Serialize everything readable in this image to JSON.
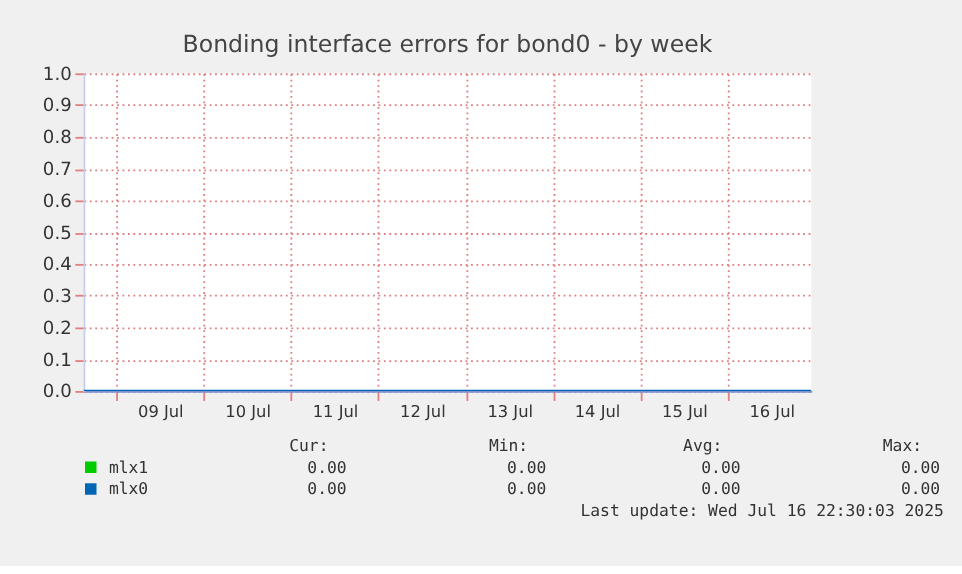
{
  "chart_data": {
    "type": "line",
    "title": "Bonding interface errors for bond0 - by week",
    "x": [
      "2025-07-08T15:00",
      "2025-07-16T23:00"
    ],
    "series": [
      {
        "name": "mlx1",
        "color": "#00cc00",
        "values": [
          null,
          null
        ]
      },
      {
        "name": "mlx0",
        "color": "#0066b3",
        "values": [
          0,
          0
        ]
      }
    ],
    "xlim": [
      "2025-07-08T15:00",
      "2025-07-16T23:00"
    ],
    "xticks": [
      {
        "value": "2025-07-09T00:00",
        "label": null
      },
      {
        "value": "2025-07-09T12:00",
        "label": "09 Jul"
      },
      {
        "value": "2025-07-10T00:00",
        "label": null
      },
      {
        "value": "2025-07-10T12:00",
        "label": "10 Jul"
      },
      {
        "value": "2025-07-11T00:00",
        "label": null
      },
      {
        "value": "2025-07-11T12:00",
        "label": "11 Jul"
      },
      {
        "value": "2025-07-12T00:00",
        "label": null
      },
      {
        "value": "2025-07-12T12:00",
        "label": "12 Jul"
      },
      {
        "value": "2025-07-13T00:00",
        "label": null
      },
      {
        "value": "2025-07-13T12:00",
        "label": "13 Jul"
      },
      {
        "value": "2025-07-14T00:00",
        "label": null
      },
      {
        "value": "2025-07-14T12:00",
        "label": "14 Jul"
      },
      {
        "value": "2025-07-15T00:00",
        "label": null
      },
      {
        "value": "2025-07-15T12:00",
        "label": "15 Jul"
      },
      {
        "value": "2025-07-16T00:00",
        "label": null
      },
      {
        "value": "2025-07-16T12:00",
        "label": "16 Jul"
      }
    ],
    "ylim": [
      0,
      1
    ],
    "yticks": [
      {
        "value": 0,
        "label": "0.0"
      },
      {
        "value": 0.1,
        "label": "0.1"
      },
      {
        "value": 0.2,
        "label": "0.2"
      },
      {
        "value": 0.3,
        "label": "0.3"
      },
      {
        "value": 0.4,
        "label": "0.4"
      },
      {
        "value": 0.5,
        "label": "0.5"
      },
      {
        "value": 0.6,
        "label": "0.6"
      },
      {
        "value": 0.7,
        "label": "0.7"
      },
      {
        "value": 0.8,
        "label": "0.8"
      },
      {
        "value": 0.9,
        "label": "0.9"
      },
      {
        "value": 1,
        "label": "1.0"
      }
    ],
    "grid": true,
    "legend": "bottom",
    "marker": "none",
    "line_style": "solid",
    "annotations": [
      "Cur:",
      "Min:",
      "Avg:",
      "Max:",
      "0.00",
      "0.00",
      "0.00",
      "0.00",
      "0.00",
      "0.00",
      "0.00",
      "0.00",
      "Last update: Wed Jul 16 22:30:03 2025"
    ]
  }
}
